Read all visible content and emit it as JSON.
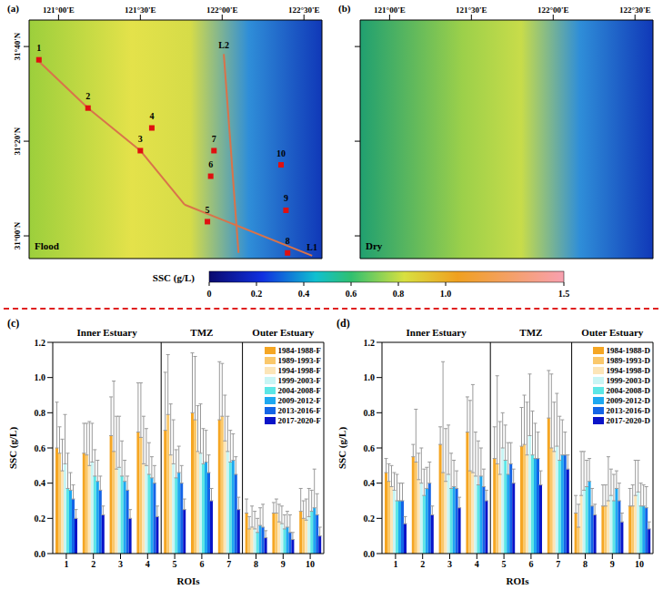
{
  "chart_data": [
    {
      "type": "scatter",
      "panel": "(a)",
      "annotation": "Flood",
      "xlim": [
        120.82,
        122.61
      ],
      "xticks": [
        {
          "value": 121,
          "label": "121°00'E"
        },
        {
          "value": 121.5,
          "label": "121°30'E"
        },
        {
          "value": 122,
          "label": "122°00'E"
        },
        {
          "value": 122.5,
          "label": "122°30'E"
        }
      ],
      "ylim": [
        30.92,
        31.76
      ],
      "yticks": [
        {
          "value": 31,
          "label": "31°00'N"
        },
        {
          "value": 31.3333,
          "label": "31°20'N"
        },
        {
          "value": 31.6667,
          "label": "31°40'N"
        }
      ],
      "rois": [
        {
          "label": "1",
          "lon": 120.88,
          "lat": 31.62
        },
        {
          "label": "2",
          "lon": 121.18,
          "lat": 31.45
        },
        {
          "label": "3",
          "lon": 121.5,
          "lat": 31.3
        },
        {
          "label": "4",
          "lon": 121.57,
          "lat": 31.38
        },
        {
          "label": "5",
          "lon": 121.91,
          "lat": 31.05
        },
        {
          "label": "6",
          "lon": 121.93,
          "lat": 31.21
        },
        {
          "label": "7",
          "lon": 121.95,
          "lat": 31.3
        },
        {
          "label": "8",
          "lon": 122.4,
          "lat": 30.94
        },
        {
          "label": "9",
          "lon": 122.39,
          "lat": 31.09
        },
        {
          "label": "10",
          "lon": 122.36,
          "lat": 31.25
        }
      ],
      "lines": [
        {
          "name": "L1",
          "points": [
            [
              120.87,
              31.62
            ],
            [
              121.18,
              31.45
            ],
            [
              121.5,
              31.3
            ],
            [
              121.77,
              31.11
            ],
            [
              122.55,
              30.93
            ]
          ]
        },
        {
          "name": "L2",
          "points": [
            [
              122.1,
              30.94
            ],
            [
              122.01,
              31.64
            ]
          ]
        }
      ]
    },
    {
      "type": "scatter",
      "panel": "(b)",
      "annotation": "Dry",
      "tick_labels": "x",
      "xlim": [
        120.82,
        122.61
      ],
      "xticks": [
        {
          "value": 121,
          "label": "121°00'E"
        },
        {
          "value": 121.5,
          "label": "121°30'E"
        },
        {
          "value": 122,
          "label": "122°00'E"
        },
        {
          "value": 122.5,
          "label": "122°30'E"
        }
      ],
      "ylim": [
        30.92,
        31.76
      ],
      "yticks": [
        {
          "value": 31,
          "label": "31°00'N"
        },
        {
          "value": 31.3333,
          "label": "31°20'N"
        },
        {
          "value": 31.6667,
          "label": "31°40'N"
        }
      ]
    },
    {
      "type": "bar",
      "panel": "(c)",
      "x_label": "ROIs",
      "y_label": "SSC (g/L)",
      "legend": "top-right",
      "x": [
        1,
        2,
        3,
        4,
        5,
        6,
        7,
        8,
        9,
        10
      ],
      "xlim": [
        0.5,
        10.5
      ],
      "xticks": [
        1,
        2,
        3,
        4,
        5,
        6,
        7,
        8,
        9,
        10
      ],
      "ylim": [
        0,
        1.2
      ],
      "yticks": [
        {
          "value": 0,
          "label": "0.0"
        },
        0.2,
        0.4,
        0.6,
        0.8,
        {
          "value": 1,
          "label": "1.0"
        },
        1.2
      ],
      "groups": [
        {
          "label": "Inner Estuary",
          "from": 1,
          "to": 4
        },
        {
          "label": "TMZ",
          "from": 5,
          "to": 7
        },
        {
          "label": "Outer Estuary",
          "from": 8,
          "to": 10
        }
      ],
      "series": [
        {
          "name": "1984-1988-F",
          "color": "#f5a623",
          "values": [
            0.6,
            0.57,
            0.67,
            0.69,
            0.7,
            0.8,
            0.76,
            0.23,
            0.23,
            0.24
          ],
          "errors": [
            0.26,
            0.17,
            0.22,
            0.28,
            0.33,
            0.34,
            0.33,
            0.08,
            0.06,
            0.13
          ]
        },
        {
          "name": "1989-1993-F",
          "color": "#fac86b",
          "values": [
            0.57,
            0.56,
            0.58,
            0.66,
            0.79,
            0.76,
            0.78,
            0.14,
            0.23,
            0.2
          ],
          "errors": [
            0.15,
            0.18,
            0.4,
            0.31,
            0.34,
            0.36,
            0.3,
            0.07,
            0.08,
            0.1
          ]
        },
        {
          "name": "1994-1998-F",
          "color": "#fce5b8",
          "values": [
            0.47,
            0.5,
            0.48,
            0.51,
            0.56,
            0.58,
            0.64,
            0.15,
            0.18,
            0.19
          ],
          "errors": [
            0.18,
            0.25,
            0.3,
            0.27,
            0.29,
            0.26,
            0.26,
            0.12,
            0.1,
            0.12
          ]
        },
        {
          "name": "1999-2003-F",
          "color": "#c8f5f5",
          "values": [
            0.51,
            0.52,
            0.49,
            0.5,
            0.51,
            0.57,
            0.58,
            0.14,
            0.17,
            0.21
          ],
          "errors": [
            0.28,
            0.22,
            0.29,
            0.21,
            0.25,
            0.28,
            0.2,
            0.1,
            0.1,
            0.16
          ]
        },
        {
          "name": "2004-2008-F",
          "color": "#5ce6e6",
          "values": [
            0.37,
            0.44,
            0.44,
            0.45,
            0.43,
            0.51,
            0.52,
            0.12,
            0.14,
            0.24
          ],
          "errors": [
            0.2,
            0.15,
            0.2,
            0.18,
            0.16,
            0.2,
            0.18,
            0.08,
            0.08,
            0.12
          ]
        },
        {
          "name": "2009-2012-F",
          "color": "#1ea8f0",
          "values": [
            0.36,
            0.41,
            0.41,
            0.43,
            0.46,
            0.52,
            0.53,
            0.16,
            0.15,
            0.26
          ],
          "errors": [
            0.1,
            0.12,
            0.12,
            0.12,
            0.15,
            0.18,
            0.15,
            0.1,
            0.09,
            0.22
          ]
        },
        {
          "name": "2013-2016-F",
          "color": "#1464e6",
          "values": [
            0.31,
            0.36,
            0.36,
            0.4,
            0.4,
            0.46,
            0.45,
            0.15,
            0.12,
            0.22
          ],
          "errors": [
            0.08,
            0.08,
            0.08,
            0.1,
            0.1,
            0.1,
            0.1,
            0.13,
            0.1,
            0.12
          ]
        },
        {
          "name": "2017-2020-F",
          "color": "#0a14c8",
          "values": [
            0.2,
            0.22,
            0.2,
            0.21,
            0.25,
            0.3,
            0.25,
            0.09,
            0.08,
            0.1
          ],
          "errors": [
            0.05,
            0.05,
            0.05,
            0.06,
            0.06,
            0.07,
            0.07,
            0.04,
            0.04,
            0.05
          ]
        }
      ]
    },
    {
      "type": "bar",
      "panel": "(d)",
      "x_label": "ROIs",
      "y_label": "SSC (g/L)",
      "legend": "top-right",
      "x": [
        1,
        2,
        3,
        4,
        5,
        6,
        7,
        8,
        9,
        10
      ],
      "xlim": [
        0.5,
        10.5
      ],
      "xticks": [
        1,
        2,
        3,
        4,
        5,
        6,
        7,
        8,
        9,
        10
      ],
      "ylim": [
        0,
        1.2
      ],
      "yticks": [
        {
          "value": 0,
          "label": "0.0"
        },
        0.2,
        0.4,
        0.6,
        0.8,
        {
          "value": 1,
          "label": "1.0"
        },
        1.2
      ],
      "groups": [
        {
          "label": "Inner Estuary",
          "from": 1,
          "to": 4
        },
        {
          "label": "TMZ",
          "from": 5,
          "to": 7
        },
        {
          "label": "Outer Estuary",
          "from": 8,
          "to": 10
        }
      ],
      "series": [
        {
          "name": "1984-1988-D",
          "color": "#f5a623",
          "values": [
            0.46,
            0.55,
            0.62,
            0.69,
            0.54,
            0.61,
            0.77,
            0.23,
            0.27,
            0.27
          ],
          "errors": [
            0.08,
            0.07,
            0.1,
            0.2,
            0.18,
            0.22,
            0.27,
            0.1,
            0.12,
            0.1
          ]
        },
        {
          "name": "1989-1993-D",
          "color": "#fac86b",
          "values": [
            0.41,
            0.52,
            0.46,
            0.47,
            0.51,
            0.62,
            0.6,
            0.15,
            0.27,
            0.27
          ],
          "errors": [
            0.1,
            0.3,
            0.63,
            0.4,
            0.5,
            0.28,
            0.42,
            0.13,
            0.12,
            0.12
          ]
        },
        {
          "name": "1994-1998-D",
          "color": "#fce5b8",
          "values": [
            0.38,
            0.42,
            0.41,
            0.46,
            0.45,
            0.56,
            0.58,
            0.33,
            0.3,
            0.33
          ],
          "errors": [
            0.12,
            0.15,
            0.3,
            0.5,
            0.3,
            0.3,
            0.28,
            0.25,
            0.25,
            0.2
          ]
        },
        {
          "name": "1999-2003-D",
          "color": "#c8f5f5",
          "values": [
            0.36,
            0.4,
            0.45,
            0.44,
            0.6,
            0.67,
            0.61,
            0.36,
            0.33,
            0.35
          ],
          "errors": [
            0.1,
            0.2,
            0.28,
            0.25,
            0.2,
            0.35,
            0.3,
            0.22,
            0.15,
            0.18
          ]
        },
        {
          "name": "2004-2008-D",
          "color": "#5ce6e6",
          "values": [
            0.3,
            0.33,
            0.37,
            0.39,
            0.53,
            0.56,
            0.53,
            0.38,
            0.3,
            0.27
          ],
          "errors": [
            0.15,
            0.15,
            0.2,
            0.25,
            0.2,
            0.25,
            0.25,
            0.15,
            0.15,
            0.13
          ]
        },
        {
          "name": "2009-2012-D",
          "color": "#1ea8f0",
          "values": [
            0.3,
            0.37,
            0.38,
            0.44,
            0.45,
            0.54,
            0.56,
            0.41,
            0.37,
            0.27
          ],
          "errors": [
            0.1,
            0.12,
            0.15,
            0.16,
            0.18,
            0.2,
            0.2,
            0.13,
            0.1,
            0.12
          ]
        },
        {
          "name": "2013-2016-D",
          "color": "#1464e6",
          "values": [
            0.3,
            0.4,
            0.37,
            0.38,
            0.51,
            0.54,
            0.56,
            0.27,
            0.3,
            0.26
          ],
          "errors": [
            0.1,
            0.12,
            0.1,
            0.1,
            0.12,
            0.15,
            0.13,
            0.1,
            0.1,
            0.12
          ]
        },
        {
          "name": "2017-2020-D",
          "color": "#0a14c8",
          "values": [
            0.17,
            0.22,
            0.26,
            0.3,
            0.4,
            0.39,
            0.48,
            0.22,
            0.18,
            0.14
          ],
          "errors": [
            0.04,
            0.05,
            0.06,
            0.06,
            0.08,
            0.08,
            0.08,
            0.06,
            0.05,
            0.04
          ]
        }
      ]
    }
  ],
  "colorbar": {
    "label": "SSC (g/L)",
    "range": [
      0,
      1.5
    ],
    "ticks": [
      0,
      0.2,
      0.4,
      0.6,
      0.8,
      {
        "value": 1,
        "label": "1.0"
      },
      1.5
    ]
  }
}
